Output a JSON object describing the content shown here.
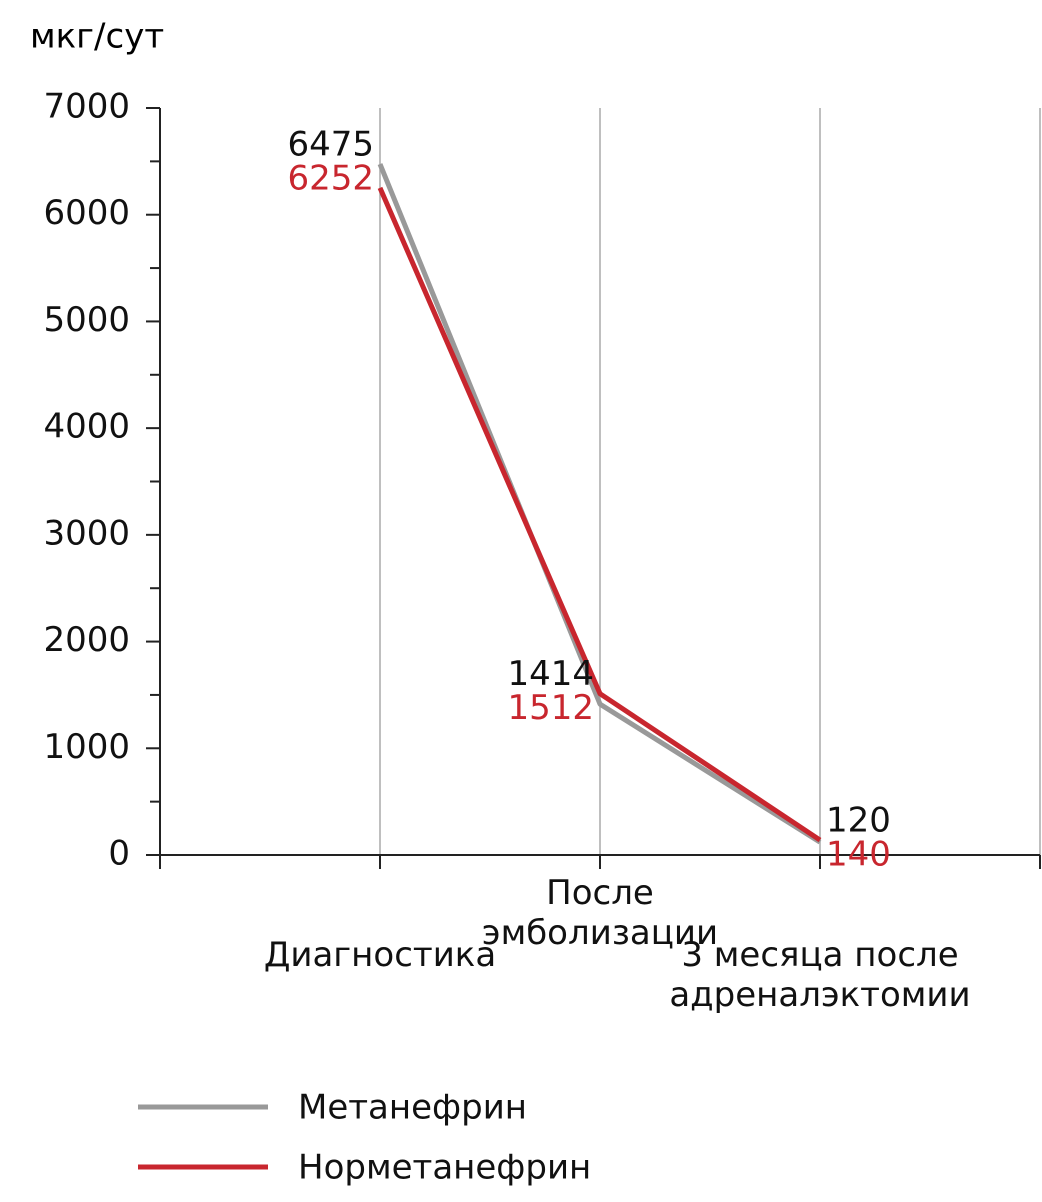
{
  "chart_data": {
    "type": "line",
    "y_axis_title": "мкг/сут",
    "categories": [
      "Диагностика",
      "После эмболизации",
      "3 месяца после адреналэктомии"
    ],
    "series": [
      {
        "name": "Метанефрин",
        "color": "#999999",
        "values": [
          6475,
          1414,
          120
        ]
      },
      {
        "name": "Норметанефрин",
        "color": "#c8262e",
        "values": [
          6252,
          1512,
          140
        ]
      }
    ],
    "ylim": [
      0,
      7000
    ],
    "yticks": [
      0,
      1000,
      2000,
      3000,
      4000,
      5000,
      6000,
      7000
    ],
    "yticks_minor": [
      500,
      1500,
      2500,
      3500,
      4500,
      5500,
      6500
    ],
    "grid": true
  }
}
